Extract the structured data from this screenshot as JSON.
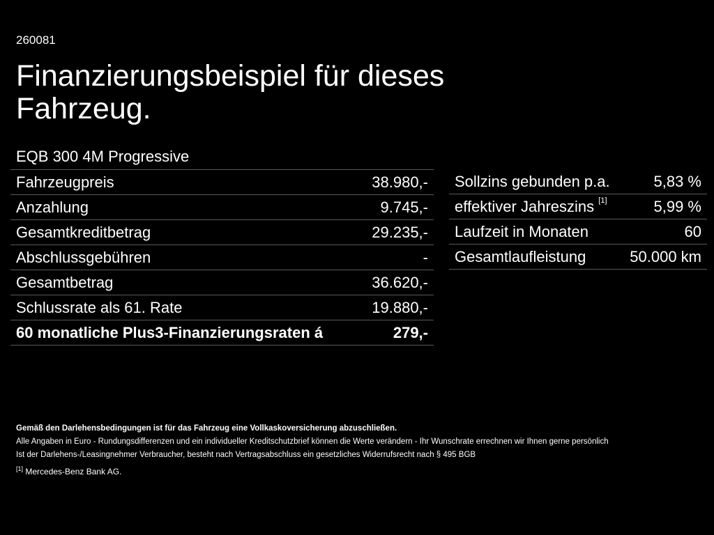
{
  "header": {
    "code": "260081",
    "title": "Finanzierungsbeispiel für dieses Fahrzeug.",
    "model": "EQB 300 4M Progressive"
  },
  "left_table": {
    "rows": [
      {
        "label": "Fahrzeugpreis",
        "value": "38.980,-"
      },
      {
        "label": "Anzahlung",
        "value": "9.745,-"
      },
      {
        "label": "Gesamtkreditbetrag",
        "value": "29.235,-"
      },
      {
        "label": "Abschlussgebühren",
        "value": "-"
      },
      {
        "label": "Gesamtbetrag",
        "value": "36.620,-"
      },
      {
        "label": "Schlussrate als 61. Rate",
        "value": "19.880,-"
      },
      {
        "label": "60 monatliche Plus3-Finanzierungsraten á",
        "value": "279,-"
      }
    ]
  },
  "right_table": {
    "rows": [
      {
        "label": "Sollzins gebunden p.a.",
        "value": "5,83 %"
      },
      {
        "label": "effektiver Jahreszins",
        "sup": "[1]",
        "value": "5,99 %"
      },
      {
        "label": "Laufzeit in Monaten",
        "value": "60"
      },
      {
        "label": "Gesamtlaufleistung",
        "value": "50.000 km"
      }
    ]
  },
  "notes": {
    "bold": "Gemäß den Darlehensbedingungen ist für das Fahrzeug eine Vollkaskoversicherung abzuschließen.",
    "line1": "Alle Angaben in Euro - Rundungsdifferenzen und ein individueller Kreditschutzbrief können die Werte verändern - Ihr Wunschrate errechnen wir Ihnen gerne persönlich",
    "line2": "Ist der Darlehens-/Leasingnehmer Verbraucher, besteht nach Vertragsabschluss ein gesetzliches Widerrufsrecht nach § 495 BGB"
  },
  "footnote": {
    "marker": "[1]",
    "text": "Mercedes-Benz Bank AG."
  },
  "colors": {
    "background": "#000000",
    "text": "#ffffff",
    "divider": "#5a5a5a"
  }
}
